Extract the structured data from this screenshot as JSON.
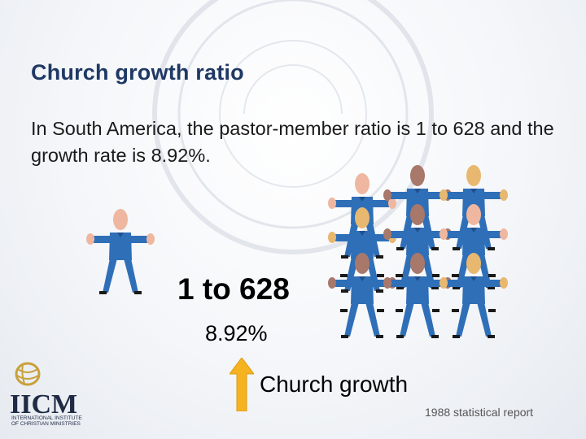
{
  "slide": {
    "title": "Church growth ratio",
    "subtitle": "In South America, the pastor-member ratio is 1 to 628 and the growth rate is 8.92%.",
    "ratio_text": "1 to 628",
    "growth_rate_text": "8.92%",
    "growth_label": "Church growth",
    "source_note": "1988 statistical report"
  },
  "logo": {
    "name": "IICM",
    "line1": "INTERNATIONAL INSTITUTE",
    "line2": "OF CHRISTIAN MINISTRIES"
  },
  "colors": {
    "title": "#1f3864",
    "shirt": "#2f6fb8",
    "arrow": "#f5b320",
    "head_light": "#f0b7a0",
    "head_dark": "#a8786a",
    "head_blonde": "#e8b870"
  },
  "icons": [
    "pastor-figure-icon",
    "member-figure-icon",
    "up-arrow-icon",
    "globe-logo-icon"
  ]
}
